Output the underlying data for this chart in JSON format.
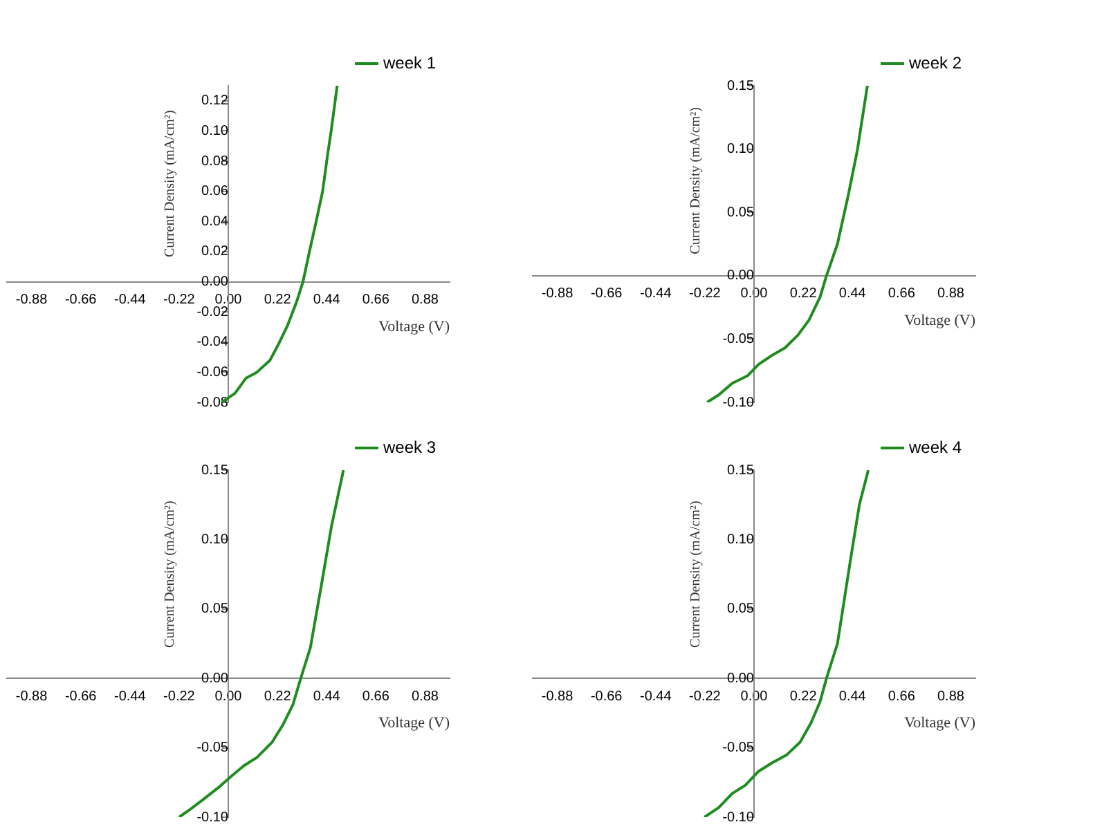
{
  "chart_data": [
    {
      "type": "line",
      "xlabel": "Voltage (V)",
      "ylabel": "Current Density (mA/cm²)",
      "legend": "top right",
      "marker": "none",
      "xlim": [
        -0.99,
        0.99
      ],
      "xticks": [
        {
          "value": -0.88,
          "label": "-0.88"
        },
        {
          "value": -0.66,
          "label": "-0.66"
        },
        {
          "value": -0.44,
          "label": "-0.44"
        },
        {
          "value": -0.22,
          "label": "-0.22"
        },
        {
          "value": 0,
          "label": "0.00"
        },
        {
          "value": 0.22,
          "label": "0.22"
        },
        {
          "value": 0.44,
          "label": "0.44"
        },
        {
          "value": 0.66,
          "label": "0.66"
        },
        {
          "value": 0.88,
          "label": "0.88"
        }
      ],
      "ylim": [
        -0.08,
        0.13
      ],
      "yticks": [
        {
          "value": -0.08,
          "label": "-0.08"
        },
        {
          "value": -0.06,
          "label": "-0.06"
        },
        {
          "value": -0.04,
          "label": "-0.04"
        },
        {
          "value": -0.02,
          "label": "-0.02"
        },
        {
          "value": 0,
          "label": "0.00"
        },
        {
          "value": 0.02,
          "label": "0.02"
        },
        {
          "value": 0.04,
          "label": "0.04"
        },
        {
          "value": 0.06,
          "label": "0.06"
        },
        {
          "value": 0.08,
          "label": "0.08"
        },
        {
          "value": 0.1,
          "label": "0.10"
        },
        {
          "value": 0.12,
          "label": "0.12"
        }
      ],
      "x": [
        -0.03,
        0.03,
        0.079,
        0.128,
        0.187,
        0.226,
        0.265,
        0.304,
        0.334,
        0.363,
        0.393,
        0.422,
        0.442,
        0.462,
        0.487
      ],
      "series": [
        {
          "name": "week 1",
          "color": "#1e8c1e",
          "values": [
            -0.08,
            -0.074,
            -0.064,
            -0.06,
            -0.052,
            -0.041,
            -0.029,
            -0.014,
            0,
            0.02,
            0.04,
            0.06,
            0.082,
            0.102,
            0.13
          ]
        }
      ]
    },
    {
      "type": "line",
      "xlabel": "Voltage (V)",
      "ylabel": "Current Density (mA/cm²)",
      "legend": "top right",
      "marker": "none",
      "xlim": [
        -0.99,
        0.99
      ],
      "xticks": [
        {
          "value": -0.88,
          "label": "-0.88"
        },
        {
          "value": -0.66,
          "label": "-0.66"
        },
        {
          "value": -0.44,
          "label": "-0.44"
        },
        {
          "value": -0.22,
          "label": "-0.22"
        },
        {
          "value": 0,
          "label": "0.00"
        },
        {
          "value": 0.22,
          "label": "0.22"
        },
        {
          "value": 0.44,
          "label": "0.44"
        },
        {
          "value": 0.66,
          "label": "0.66"
        },
        {
          "value": 0.88,
          "label": "0.88"
        }
      ],
      "ylim": [
        -0.1,
        0.15
      ],
      "yticks": [
        {
          "value": -0.1,
          "label": "-0.10"
        },
        {
          "value": -0.05,
          "label": "-0.05"
        },
        {
          "value": 0,
          "label": "0.00"
        },
        {
          "value": 0.05,
          "label": "0.05"
        },
        {
          "value": 0.1,
          "label": "0.10"
        },
        {
          "value": 0.15,
          "label": "0.15"
        }
      ],
      "x": [
        -0.21,
        -0.157,
        -0.098,
        -0.029,
        0.02,
        0.079,
        0.138,
        0.196,
        0.246,
        0.295,
        0.324,
        0.373,
        0.422,
        0.462,
        0.507
      ],
      "series": [
        {
          "name": "week 2",
          "color": "#1e8c1e",
          "values": [
            -0.1,
            -0.094,
            -0.085,
            -0.079,
            -0.07,
            -0.063,
            -0.057,
            -0.047,
            -0.035,
            -0.017,
            0,
            0.025,
            0.064,
            0.099,
            0.15
          ]
        }
      ]
    },
    {
      "type": "line",
      "xlabel": "Voltage (V)",
      "ylabel": "Current Density (mA/cm²)",
      "legend": "top right",
      "marker": "none",
      "xlim": [
        -0.99,
        0.99
      ],
      "xticks": [
        {
          "value": -0.88,
          "label": "-0.88"
        },
        {
          "value": -0.66,
          "label": "-0.66"
        },
        {
          "value": -0.44,
          "label": "-0.44"
        },
        {
          "value": -0.22,
          "label": "-0.22"
        },
        {
          "value": 0,
          "label": "0.00"
        },
        {
          "value": 0.22,
          "label": "0.22"
        },
        {
          "value": 0.44,
          "label": "0.44"
        },
        {
          "value": 0.66,
          "label": "0.66"
        },
        {
          "value": 0.88,
          "label": "0.88"
        }
      ],
      "ylim": [
        -0.1,
        0.15
      ],
      "yticks": [
        {
          "value": -0.1,
          "label": "-0.10"
        },
        {
          "value": -0.05,
          "label": "-0.05"
        },
        {
          "value": 0,
          "label": "0.00"
        },
        {
          "value": 0.05,
          "label": "0.05"
        },
        {
          "value": 0.1,
          "label": "0.10"
        },
        {
          "value": 0.15,
          "label": "0.15"
        }
      ],
      "x": [
        -0.22,
        -0.167,
        -0.118,
        -0.039,
        0.01,
        0.069,
        0.128,
        0.196,
        0.246,
        0.289,
        0.324,
        0.367,
        0.413,
        0.462,
        0.515
      ],
      "series": [
        {
          "name": "week 3",
          "color": "#1e8c1e",
          "values": [
            -0.1,
            -0.094,
            -0.088,
            -0.078,
            -0.071,
            -0.063,
            -0.057,
            -0.046,
            -0.033,
            -0.019,
            0,
            0.022,
            0.064,
            0.11,
            0.15
          ]
        }
      ]
    },
    {
      "type": "line",
      "xlabel": "Voltage (V)",
      "ylabel": "Current Density (mA/cm²)",
      "legend": "top right",
      "marker": "none",
      "xlim": [
        -0.99,
        0.99
      ],
      "xticks": [
        {
          "value": -0.88,
          "label": "-0.88"
        },
        {
          "value": -0.66,
          "label": "-0.66"
        },
        {
          "value": -0.44,
          "label": "-0.44"
        },
        {
          "value": -0.22,
          "label": "-0.22"
        },
        {
          "value": 0,
          "label": "0.00"
        },
        {
          "value": 0.22,
          "label": "0.22"
        },
        {
          "value": 0.44,
          "label": "0.44"
        },
        {
          "value": 0.66,
          "label": "0.66"
        },
        {
          "value": 0.88,
          "label": "0.88"
        }
      ],
      "ylim": [
        -0.1,
        0.15
      ],
      "yticks": [
        {
          "value": -0.1,
          "label": "-0.10"
        },
        {
          "value": -0.05,
          "label": "-0.05"
        },
        {
          "value": 0,
          "label": "0.00"
        },
        {
          "value": 0.05,
          "label": "0.05"
        },
        {
          "value": 0.1,
          "label": "0.10"
        },
        {
          "value": 0.15,
          "label": "0.15"
        }
      ],
      "x": [
        -0.222,
        -0.157,
        -0.098,
        -0.039,
        0.02,
        0.079,
        0.147,
        0.206,
        0.255,
        0.295,
        0.324,
        0.373,
        0.432,
        0.471,
        0.511
      ],
      "series": [
        {
          "name": "week 4",
          "color": "#1e8c1e",
          "values": [
            -0.1,
            -0.093,
            -0.083,
            -0.077,
            -0.067,
            -0.061,
            -0.055,
            -0.046,
            -0.032,
            -0.017,
            0,
            0.025,
            0.086,
            0.125,
            0.15
          ]
        }
      ]
    }
  ]
}
